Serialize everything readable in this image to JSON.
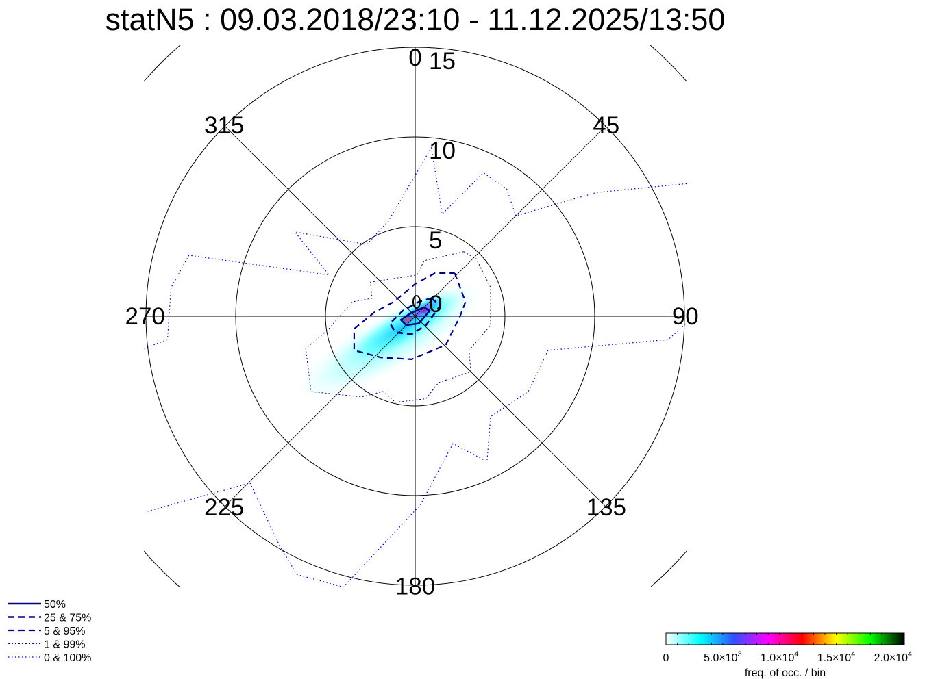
{
  "chart_data": {
    "type": "polar-density",
    "title": "statN5 : 09.03.2018/23:10 - 11.12.2025/13:50",
    "radial_axis": {
      "range": [
        0,
        15
      ],
      "ticks": [
        "0",
        "5",
        "10",
        "15"
      ],
      "outer_clip_circle": 20
    },
    "direction_axis": {
      "ticks": [
        "0",
        "45",
        "90",
        "135",
        "180",
        "225",
        "270",
        "315"
      ],
      "zero": "north",
      "direction": "clockwise"
    },
    "grid": true,
    "contour_units": "east/north components in radial-axis units",
    "contours": [
      {
        "name": "50%",
        "style": "solid",
        "color": "#000080",
        "points": [
          [
            0.5,
            0.5
          ],
          [
            0.8,
            0.3
          ],
          [
            0.2,
            -0.4
          ],
          [
            -0.5,
            -0.5
          ],
          [
            -0.8,
            -0.2
          ],
          [
            -0.2,
            0.2
          ]
        ]
      },
      {
        "name": "25 &  75%",
        "style": "dash-thick",
        "color": "#000080",
        "points": [
          [
            0.9,
            1.0
          ],
          [
            1.4,
            0.6
          ],
          [
            0.6,
            -0.5
          ],
          [
            -0.2,
            -1.0
          ],
          [
            -1.1,
            -0.9
          ],
          [
            -1.4,
            -0.4
          ],
          [
            -0.7,
            0.3
          ],
          [
            0.2,
            0.8
          ]
        ]
      },
      {
        "name": "5 &  95%",
        "style": "dash",
        "color": "#000080",
        "points": [
          [
            2.2,
            2.4
          ],
          [
            2.8,
            0.8
          ],
          [
            2.5,
            0
          ],
          [
            1.7,
            -1.6
          ],
          [
            -0.2,
            -2.4
          ],
          [
            -1.9,
            -2.3
          ],
          [
            -3.4,
            -1.9
          ],
          [
            -3.4,
            -0.7
          ],
          [
            -2.3,
            0.2
          ],
          [
            -1.2,
            0.8
          ],
          [
            0,
            1.8
          ],
          [
            1.1,
            2.4
          ]
        ]
      },
      {
        "name": "1 &  99%",
        "style": "dot",
        "color": "#000080",
        "points": [
          [
            2.7,
            3.6
          ],
          [
            0.5,
            3.1
          ],
          [
            0.1,
            2.3
          ],
          [
            -2.5,
            1.9
          ],
          [
            -2.4,
            1.0
          ],
          [
            -3.5,
            0.8
          ],
          [
            -4.9,
            -0.8
          ],
          [
            -6.1,
            -1.8
          ],
          [
            -5.8,
            -4.2
          ],
          [
            -3.0,
            -4.5
          ],
          [
            -1.8,
            -4.2
          ],
          [
            -1.1,
            -4.8
          ],
          [
            0.6,
            -4.6
          ],
          [
            1.3,
            -3.7
          ],
          [
            3.1,
            -3.1
          ],
          [
            3.0,
            -1.9
          ],
          [
            4.2,
            -0.5
          ],
          [
            4.2,
            1.6
          ],
          [
            3.4,
            3.2
          ]
        ]
      },
      {
        "name": "0 & 100%",
        "style": "dot-sparse",
        "color": "#0000c0",
        "open": true,
        "segments": [
          [
            [
              -15.1,
              -1.8
            ],
            [
              -13.8,
              -1.3
            ],
            [
              -13.6,
              1.6
            ],
            [
              -12.6,
              3.4
            ],
            [
              -4.8,
              2.3
            ],
            [
              -6.7,
              4.7
            ],
            [
              -2.7,
              4.0
            ],
            [
              -1.5,
              5.3
            ],
            [
              0.9,
              9.4
            ],
            [
              1.5,
              5.7
            ],
            [
              3.8,
              8.0
            ],
            [
              5.1,
              7.1
            ],
            [
              5.6,
              5.6
            ],
            [
              10.1,
              6.9
            ],
            [
              15.2,
              7.4
            ]
          ],
          [
            [
              15.2,
              -0.3
            ],
            [
              14.1,
              -1.3
            ],
            [
              7.4,
              -1.9
            ],
            [
              6.3,
              -4.2
            ],
            [
              4.2,
              -5.6
            ],
            [
              4.0,
              -8.1
            ],
            [
              2.1,
              -7.1
            ],
            [
              0.3,
              -10.5
            ],
            [
              -4.0,
              -15.1
            ],
            [
              -6.6,
              -14.4
            ],
            [
              -7.6,
              -12.7
            ],
            [
              -9.2,
              -9.3
            ],
            [
              -15.0,
              -10.9
            ]
          ]
        ]
      }
    ],
    "density_blobs": [
      {
        "center": [
          -1.4,
          -1.4
        ],
        "spread": [
          6.0,
          1.6
        ],
        "value": 1500,
        "angle_deg": 30
      },
      {
        "center": [
          -0.6,
          -0.6
        ],
        "spread": [
          4.0,
          1.0
        ],
        "value": 4000,
        "angle_deg": 30
      },
      {
        "center": [
          0.4,
          0.3
        ],
        "spread": [
          1.5,
          0.5
        ],
        "value": 8000,
        "angle_deg": 30
      },
      {
        "center": [
          -0.4,
          -0.2
        ],
        "spread": [
          0.4,
          0.25
        ],
        "value": 13000,
        "angle_deg": 30
      },
      {
        "center": [
          0.5,
          0.3
        ],
        "spread": [
          0.3,
          0.2
        ],
        "value": 11000,
        "angle_deg": 30
      }
    ],
    "colorbar": {
      "label": "freq. of occ. / bin",
      "range": [
        0,
        21000
      ],
      "ticks": [
        {
          "value": 0,
          "label": "0"
        },
        {
          "value": 5000,
          "label": "5.0×10",
          "exp": "3"
        },
        {
          "value": 10000,
          "label": "1.0×10",
          "exp": "4"
        },
        {
          "value": 15000,
          "label": "1.5×10",
          "exp": "4"
        },
        {
          "value": 20000,
          "label": "2.0×10",
          "exp": "4"
        }
      ],
      "colors": [
        "#ffffff",
        "#00ffff",
        "#3050ff",
        "#ff00ff",
        "#ff0000",
        "#ffff00",
        "#00ff00",
        "#000000"
      ],
      "placement": "bottom-right"
    },
    "legend": {
      "placement": "bottom-left",
      "entries": [
        "50%",
        "25 &  75%",
        "5 &  95%",
        "1 &  99%",
        "0 & 100%"
      ]
    }
  }
}
